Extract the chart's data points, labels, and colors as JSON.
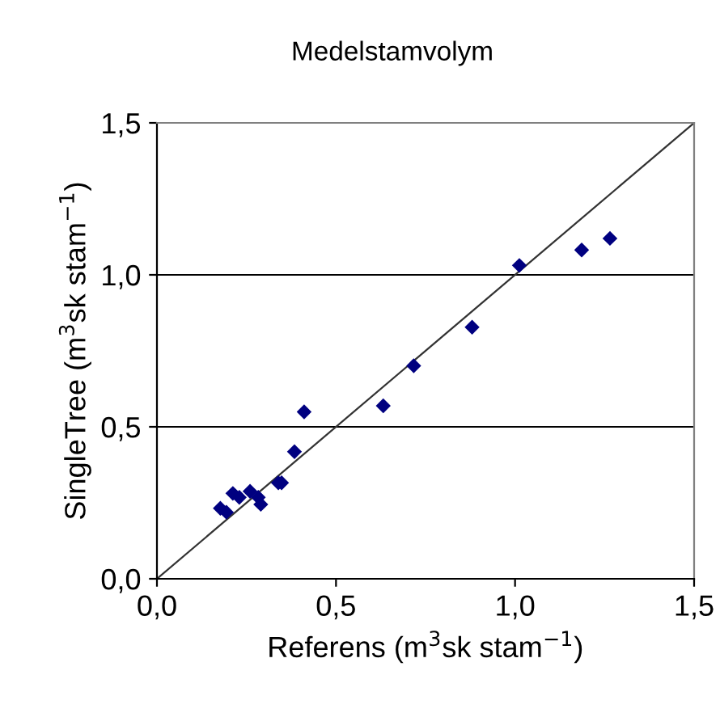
{
  "chart_data": {
    "type": "scatter",
    "title": "Medelstamvolym",
    "xlabel": "Referens (m$^{3}$sk stam$^{−1}$)",
    "ylabel": "SingleTree (m$^{3}$sk stam$^{−1}$)",
    "series": [
      {
        "color": "#000080",
        "marker": "diamond",
        "x": [
          0.177,
          0.194,
          0.212,
          0.23,
          0.26,
          0.283,
          0.29,
          0.339,
          0.348,
          0.384,
          0.411,
          0.632,
          0.717,
          0.88,
          1.012,
          1.186,
          1.265
        ],
        "values": [
          0.232,
          0.219,
          0.281,
          0.268,
          0.288,
          0.268,
          0.245,
          0.316,
          0.316,
          0.418,
          0.549,
          0.569,
          0.701,
          0.828,
          1.031,
          1.082,
          1.12
        ]
      },
      {
        "type": "line",
        "color": "#333333",
        "marker": "none",
        "x": [
          0,
          1.5
        ],
        "values": [
          0,
          1.5
        ]
      }
    ],
    "xlim": [
      0,
      1.5
    ],
    "ylim": [
      0,
      1.5
    ],
    "xticks": [
      {
        "value": 0,
        "label": "0,0"
      },
      {
        "value": 0.5,
        "label": "0,5"
      },
      {
        "value": 1,
        "label": "1,0"
      },
      {
        "value": 1.5,
        "label": "1,5"
      }
    ],
    "yticks": [
      {
        "value": 0,
        "label": "0,0"
      },
      {
        "value": 0.5,
        "label": "0,5"
      },
      {
        "value": 1,
        "label": "1,0"
      },
      {
        "value": 1.5,
        "label": "1,5"
      }
    ],
    "grid": "y",
    "legend": false
  }
}
